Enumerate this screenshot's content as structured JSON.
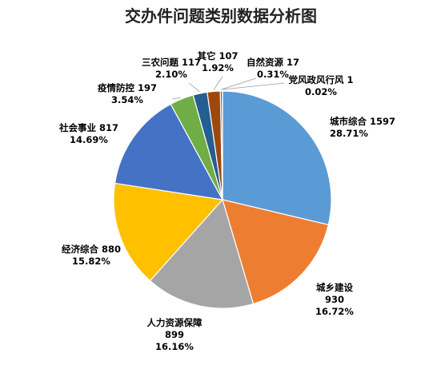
{
  "chart_data": {
    "type": "pie",
    "title": "交办件问题类别数据分析图",
    "slices": [
      {
        "label": "城市综合",
        "value": 1597,
        "percent": "28.71%",
        "color": "#5B9BD5"
      },
      {
        "label": "城乡建设",
        "value": 930,
        "percent": "16.72%",
        "color": "#ED7D31"
      },
      {
        "label": "人力资源保障",
        "value": 899,
        "percent": "16.16%",
        "color": "#A5A5A5"
      },
      {
        "label": "经济综合",
        "value": 880,
        "percent": "15.82%",
        "color": "#FFC000"
      },
      {
        "label": "社会事业",
        "value": 817,
        "percent": "14.69%",
        "color": "#4472C4"
      },
      {
        "label": "疫情防控",
        "value": 197,
        "percent": "3.54%",
        "color": "#70AD47"
      },
      {
        "label": "三农问题",
        "value": 117,
        "percent": "2.10%",
        "color": "#255E91"
      },
      {
        "label": "其它",
        "value": 107,
        "percent": "1.92%",
        "color": "#9E480E"
      },
      {
        "label": "自然资源",
        "value": 17,
        "percent": "0.31%",
        "color": "#636363"
      },
      {
        "label": "党风政风行风",
        "value": 1,
        "percent": "0.02%",
        "color": "#997300"
      }
    ]
  }
}
